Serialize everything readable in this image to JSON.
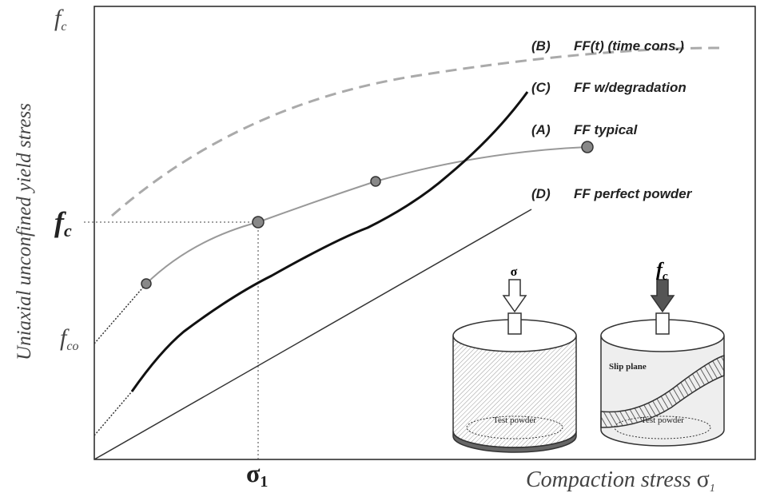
{
  "axes": {
    "y_top": {
      "symbol": "f",
      "subscript": "c"
    },
    "y_label": "Uniaxial unconfined yield stress",
    "y_mark": {
      "symbol": "f",
      "subscript": "c"
    },
    "y_origin": {
      "symbol": "f",
      "subscript": "co"
    },
    "x_mark": {
      "symbol": "σ",
      "subscript": "1"
    },
    "x_label": {
      "text": "Compaction stress ",
      "symbol": "σ",
      "subscript": "1"
    }
  },
  "curves": [
    {
      "letter": "(B)",
      "label": "FF(t) (time cons.)"
    },
    {
      "letter": "(C)",
      "label": "FF w/degradation"
    },
    {
      "letter": "(A)",
      "label": "FF typical"
    },
    {
      "letter": "(D)",
      "label": "FF perfect powder"
    }
  ],
  "inset": {
    "left": {
      "arrow": "σ",
      "bottom": "Test powder"
    },
    "right": {
      "arrow": {
        "symbol": "f",
        "subscript": "c"
      },
      "plane": "Slip plane",
      "bottom": "Test powder"
    }
  }
}
